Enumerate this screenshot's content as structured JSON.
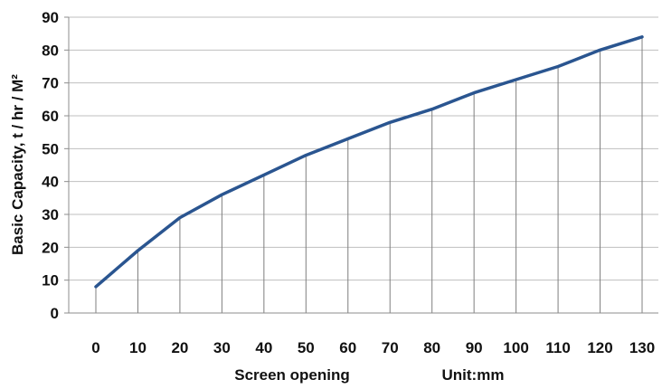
{
  "chart_data": {
    "type": "line",
    "title": "",
    "xlabel": "Screen opening",
    "xunit_label": "Unit:mm",
    "ylabel": "Basic Capacity, t / hr / M²",
    "x": [
      0,
      10,
      20,
      30,
      40,
      50,
      60,
      70,
      80,
      90,
      100,
      110,
      120,
      130
    ],
    "series": [
      {
        "values": [
          8,
          19,
          29,
          36,
          42,
          48,
          53,
          58,
          62,
          67,
          71,
          75,
          80,
          84
        ]
      }
    ],
    "xlim": [
      0,
      130
    ],
    "ylim": [
      0,
      90
    ],
    "yticks": [
      0,
      10,
      20,
      30,
      40,
      50,
      60,
      70,
      80,
      90
    ],
    "grid": "horizontal gridlines plus vertical drop lines from each point",
    "legend": "none",
    "colors": {
      "line": "#2a5590",
      "grid": "#bfbfbf",
      "drop": "#7f7f7f",
      "axis": "#8c8c8c"
    }
  }
}
